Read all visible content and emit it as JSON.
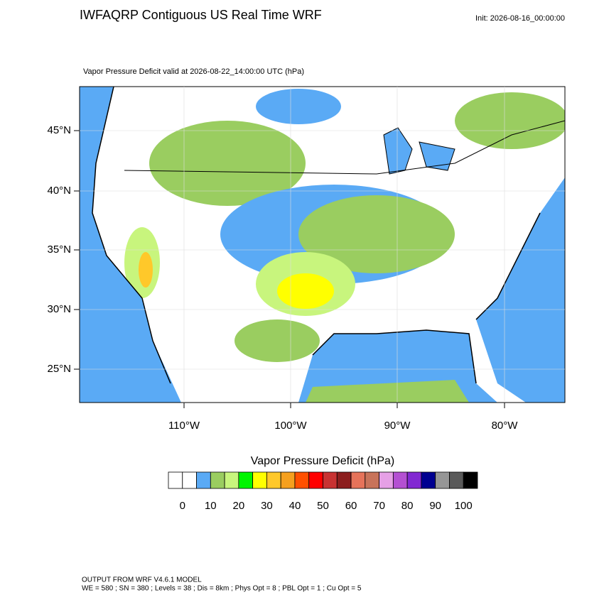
{
  "header": {
    "title": "IWFAQRP Contiguous US Real Time WRF",
    "init": "Init: 2026-08-16_00:00:00"
  },
  "map": {
    "subtitle": "Vapor Pressure Deficit valid at 2026-08-22_14:00:00 UTC   (hPa)",
    "lat_labels": [
      "45°N",
      "40°N",
      "35°N",
      "30°N",
      "25°N"
    ],
    "lon_labels": [
      "110°W",
      "100°W",
      "90°W",
      "80°W"
    ]
  },
  "colorbar": {
    "title": "Vapor Pressure Deficit  (hPa)",
    "colors": [
      "#ffffff",
      "#ffffff",
      "#5aaaf5",
      "#9acd60",
      "#c8f57d",
      "#00f500",
      "#ffff00",
      "#ffc82a",
      "#f5a01e",
      "#ff5000",
      "#ff0000",
      "#c83232",
      "#8c1e1e",
      "#e6735a",
      "#c8735a",
      "#e6a0e6",
      "#b450d2",
      "#8228d2",
      "#000090",
      "#969696",
      "#5a5a5a",
      "#000000"
    ],
    "labels": [
      0,
      10,
      20,
      30,
      40,
      50,
      60,
      70,
      80,
      90,
      100
    ]
  },
  "footer": {
    "line1": "OUTPUT FROM WRF V4.6.1 MODEL",
    "line2": "WE = 580 ; SN = 380 ; Levels = 38 ; Dis = 8km ; Phys Opt = 8 ; PBL Opt = 1 ; Cu Opt = 5"
  }
}
